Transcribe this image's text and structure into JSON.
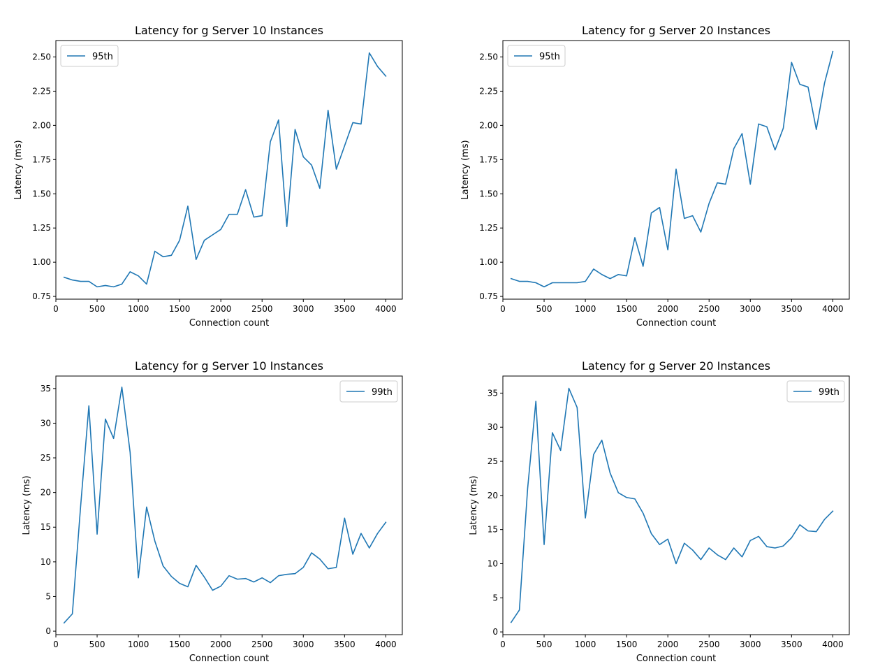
{
  "colors": {
    "series": "#1f77b4"
  },
  "chart_data": [
    {
      "type": "line",
      "title": "Latency for g Server 10 Instances",
      "xlabel": "Connection count",
      "ylabel": "Latency (ms)",
      "xlim": [
        0,
        4200
      ],
      "ylim": [
        0.73,
        2.62
      ],
      "xticks": [
        0,
        500,
        1000,
        1500,
        2000,
        2500,
        3000,
        3500,
        4000
      ],
      "yticks": [
        0.75,
        1.0,
        1.25,
        1.5,
        1.75,
        2.0,
        2.25,
        2.5
      ],
      "ytick_labels": [
        "0.75",
        "1.00",
        "1.25",
        "1.50",
        "1.75",
        "2.00",
        "2.25",
        "2.50"
      ],
      "legend_position": "upper-left",
      "x": [
        100,
        200,
        300,
        400,
        500,
        600,
        700,
        800,
        900,
        1000,
        1100,
        1200,
        1300,
        1400,
        1500,
        1600,
        1700,
        1800,
        1900,
        2000,
        2100,
        2200,
        2300,
        2400,
        2500,
        2600,
        2700,
        2800,
        2900,
        3000,
        3100,
        3200,
        3300,
        3400,
        3500,
        3600,
        3700,
        3800,
        3900,
        4000
      ],
      "series": [
        {
          "name": "95th",
          "values": [
            0.89,
            0.87,
            0.86,
            0.86,
            0.82,
            0.83,
            0.82,
            0.84,
            0.93,
            0.9,
            0.84,
            1.08,
            1.04,
            1.05,
            1.16,
            1.41,
            1.02,
            1.16,
            1.2,
            1.24,
            1.35,
            1.35,
            1.53,
            1.33,
            1.34,
            1.88,
            2.04,
            1.26,
            1.97,
            1.77,
            1.71,
            1.54,
            2.11,
            1.68,
            1.85,
            2.02,
            2.01,
            2.53,
            2.43,
            2.36
          ]
        }
      ]
    },
    {
      "type": "line",
      "title": "Latency for g Server 20 Instances",
      "xlabel": "Connection count",
      "ylabel": "Latency (ms)",
      "xlim": [
        0,
        4200
      ],
      "ylim": [
        0.73,
        2.62
      ],
      "xticks": [
        0,
        500,
        1000,
        1500,
        2000,
        2500,
        3000,
        3500,
        4000
      ],
      "yticks": [
        0.75,
        1.0,
        1.25,
        1.5,
        1.75,
        2.0,
        2.25,
        2.5
      ],
      "ytick_labels": [
        "0.75",
        "1.00",
        "1.25",
        "1.50",
        "1.75",
        "2.00",
        "2.25",
        "2.50"
      ],
      "legend_position": "upper-left",
      "x": [
        100,
        200,
        300,
        400,
        500,
        600,
        700,
        800,
        900,
        1000,
        1100,
        1200,
        1300,
        1400,
        1500,
        1600,
        1700,
        1800,
        1900,
        2000,
        2100,
        2200,
        2300,
        2400,
        2500,
        2600,
        2700,
        2800,
        2900,
        3000,
        3100,
        3200,
        3300,
        3400,
        3500,
        3600,
        3700,
        3800,
        3900,
        4000
      ],
      "series": [
        {
          "name": "95th",
          "values": [
            0.88,
            0.86,
            0.86,
            0.85,
            0.82,
            0.85,
            0.85,
            0.85,
            0.85,
            0.86,
            0.95,
            0.91,
            0.88,
            0.91,
            0.9,
            1.18,
            0.97,
            1.36,
            1.4,
            1.09,
            1.68,
            1.32,
            1.34,
            1.22,
            1.43,
            1.58,
            1.57,
            1.83,
            1.94,
            1.57,
            2.01,
            1.99,
            1.82,
            1.98,
            2.46,
            2.3,
            2.28,
            1.97,
            2.31,
            2.54
          ]
        }
      ]
    },
    {
      "type": "line",
      "title": "Latency for g Server 10 Instances",
      "xlabel": "Connection count",
      "ylabel": "Latency (ms)",
      "xlim": [
        0,
        4200
      ],
      "ylim": [
        -0.5,
        36.8
      ],
      "xticks": [
        0,
        500,
        1000,
        1500,
        2000,
        2500,
        3000,
        3500,
        4000
      ],
      "yticks": [
        0,
        5,
        10,
        15,
        20,
        25,
        30,
        35
      ],
      "ytick_labels": [
        "0",
        "5",
        "10",
        "15",
        "20",
        "25",
        "30",
        "35"
      ],
      "legend_position": "upper-right",
      "x": [
        100,
        200,
        300,
        400,
        500,
        600,
        700,
        800,
        900,
        1000,
        1100,
        1200,
        1300,
        1400,
        1500,
        1600,
        1700,
        1800,
        1900,
        2000,
        2100,
        2200,
        2300,
        2400,
        2500,
        2600,
        2700,
        2800,
        2900,
        3000,
        3100,
        3200,
        3300,
        3400,
        3500,
        3600,
        3700,
        3800,
        3900,
        4000
      ],
      "series": [
        {
          "name": "99th",
          "values": [
            1.2,
            2.5,
            18.0,
            32.5,
            14.0,
            30.6,
            27.8,
            35.2,
            25.8,
            7.7,
            17.9,
            13.0,
            9.4,
            7.9,
            6.9,
            6.4,
            9.5,
            7.8,
            5.9,
            6.5,
            8.0,
            7.5,
            7.6,
            7.1,
            7.7,
            7.0,
            8.0,
            8.2,
            8.3,
            9.2,
            11.3,
            10.4,
            9.0,
            9.2,
            16.3,
            11.1,
            14.1,
            12.0,
            14.1,
            15.7
          ]
        }
      ]
    },
    {
      "type": "line",
      "title": "Latency for g Server 20 Instances",
      "xlabel": "Connection count",
      "ylabel": "Latency (ms)",
      "xlim": [
        0,
        4200
      ],
      "ylim": [
        -0.4,
        37.5
      ],
      "xticks": [
        0,
        500,
        1000,
        1500,
        2000,
        2500,
        3000,
        3500,
        4000
      ],
      "yticks": [
        0,
        5,
        10,
        15,
        20,
        25,
        30,
        35
      ],
      "ytick_labels": [
        "0",
        "5",
        "10",
        "15",
        "20",
        "25",
        "30",
        "35"
      ],
      "legend_position": "upper-right",
      "x": [
        100,
        200,
        300,
        400,
        500,
        600,
        700,
        800,
        900,
        1000,
        1100,
        1200,
        1300,
        1400,
        1500,
        1600,
        1700,
        1800,
        1900,
        2000,
        2100,
        2200,
        2300,
        2400,
        2500,
        2600,
        2700,
        2800,
        2900,
        3000,
        3100,
        3200,
        3300,
        3400,
        3500,
        3600,
        3700,
        3800,
        3900,
        4000
      ],
      "series": [
        {
          "name": "99th",
          "values": [
            1.4,
            3.2,
            21.0,
            33.8,
            12.8,
            29.2,
            26.6,
            35.7,
            32.9,
            16.7,
            26.0,
            28.1,
            23.3,
            20.4,
            19.7,
            19.5,
            17.4,
            14.4,
            12.8,
            13.6,
            10.0,
            13.0,
            12.0,
            10.6,
            12.3,
            11.3,
            10.6,
            12.3,
            11.0,
            13.4,
            14.0,
            12.5,
            12.3,
            12.6,
            13.8,
            15.7,
            14.8,
            14.7,
            16.5,
            17.7
          ]
        }
      ]
    }
  ]
}
